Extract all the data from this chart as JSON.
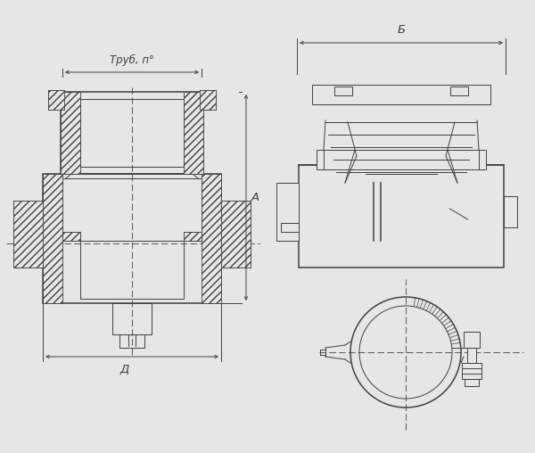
{
  "bg_color": "#e6e6e6",
  "line_color": "#404040",
  "label_trub": "Труб, п°",
  "label_A": "А",
  "label_D": "Д",
  "label_B": "Б"
}
